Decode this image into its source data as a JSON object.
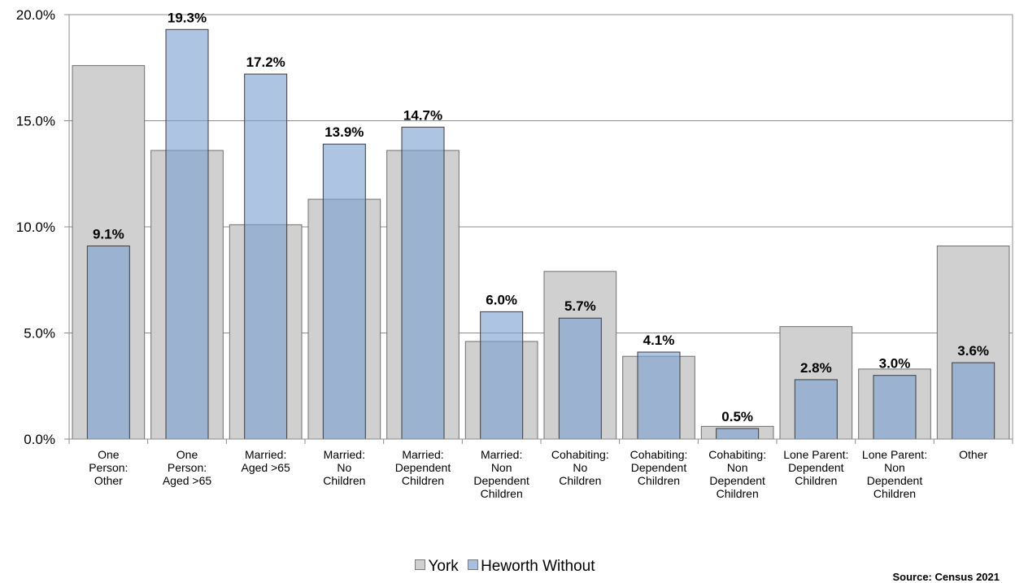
{
  "chart_data": {
    "type": "bar",
    "categories": [
      [
        "One",
        "Person:",
        "Other"
      ],
      [
        "One",
        "Person:",
        "Aged >65"
      ],
      [
        "Married:",
        "Aged >65"
      ],
      [
        "Married:",
        "No",
        "Children"
      ],
      [
        "Married:",
        "Dependent",
        "Children"
      ],
      [
        "Married:",
        "Non",
        "Dependent",
        "Children"
      ],
      [
        "Cohabiting:",
        "No",
        "Children"
      ],
      [
        "Cohabiting:",
        "Dependent",
        "Children"
      ],
      [
        "Cohabiting:",
        "Non",
        "Dependent",
        "Children"
      ],
      [
        "Lone Parent:",
        "Dependent",
        "Children"
      ],
      [
        "Lone Parent:",
        "Non",
        "Dependent",
        "Children"
      ],
      [
        "Other"
      ]
    ],
    "series": [
      {
        "name": "York",
        "values": [
          17.6,
          13.6,
          10.1,
          11.3,
          13.6,
          4.6,
          7.9,
          3.9,
          0.6,
          5.3,
          3.3,
          9.1
        ],
        "color": "#d0d0d0"
      },
      {
        "name": "Heworth Without",
        "values": [
          9.1,
          19.3,
          17.2,
          13.9,
          14.7,
          6.0,
          5.7,
          4.1,
          0.5,
          2.8,
          3.0,
          3.6
        ],
        "data_labels": [
          "9.1%",
          "19.3%",
          "17.2%",
          "13.9%",
          "14.7%",
          "6.0%",
          "5.7%",
          "4.1%",
          "0.5%",
          "2.8%",
          "3.0%",
          "3.6%"
        ],
        "color": "#7a9fd0"
      }
    ],
    "y_ticks": [
      "0.0%",
      "5.0%",
      "10.0%",
      "15.0%",
      "20.0%"
    ],
    "ylim": [
      0,
      20
    ],
    "grid": true,
    "legend_position": "bottom",
    "source": "Source: Census 2021"
  }
}
